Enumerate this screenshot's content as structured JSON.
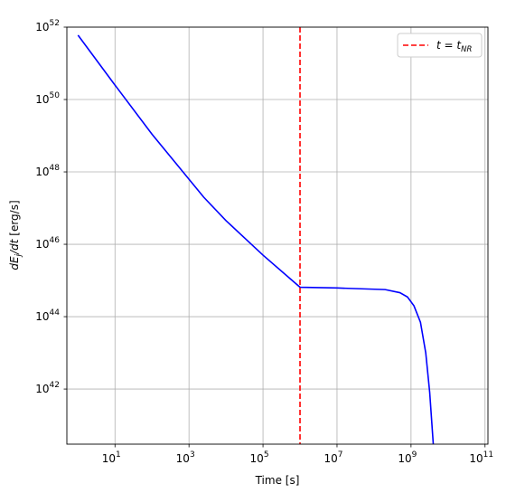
{
  "chart_data": {
    "type": "line",
    "xscale": "log",
    "yscale": "log",
    "xlim": [
      0.5,
      120000000000
    ],
    "ylim": [
      3e+40,
      1e+52
    ],
    "xlabel": "Time [s]",
    "ylabel": "dE_j/dt [erg/s]",
    "xticks": [
      {
        "value": 10,
        "base": "10",
        "exp": "1"
      },
      {
        "value": 1000,
        "base": "10",
        "exp": "3"
      },
      {
        "value": 100000,
        "base": "10",
        "exp": "5"
      },
      {
        "value": 10000000,
        "base": "10",
        "exp": "7"
      },
      {
        "value": 1000000000,
        "base": "10",
        "exp": "9"
      },
      {
        "value": 100000000000,
        "base": "10",
        "exp": "11"
      }
    ],
    "yticks": [
      {
        "value": 1e+42,
        "base": "10",
        "exp": "42"
      },
      {
        "value": 1e+44,
        "base": "10",
        "exp": "44"
      },
      {
        "value": 1e+46,
        "base": "10",
        "exp": "46"
      },
      {
        "value": 1e+48,
        "base": "10",
        "exp": "48"
      },
      {
        "value": 1e+50,
        "base": "10",
        "exp": "50"
      },
      {
        "value": 1e+52,
        "base": "10",
        "exp": "52"
      }
    ],
    "grid": true,
    "legend_placement": "top-right",
    "series": [
      {
        "color": "#0000ff",
        "style": "solid",
        "points": [
          [
            1,
            6e+51
          ],
          [
            10,
            2.5e+50
          ],
          [
            100,
            1.1e+49
          ],
          [
            2500,
            2e+47
          ],
          [
            10000,
            4.5e+46
          ],
          [
            100000,
            5e+45
          ],
          [
            1000000,
            6.5e+44
          ],
          [
            10000000,
            6.2e+44
          ],
          [
            200000000,
            5.6e+44
          ],
          [
            500000000,
            4.6e+44
          ],
          [
            800000000,
            3.5e+44
          ],
          [
            1200000000,
            2e+44
          ],
          [
            1800000000,
            7e+43
          ],
          [
            2500000000,
            1e+43
          ],
          [
            3200000000,
            8e+41
          ],
          [
            4000000000,
            3e+40
          ]
        ]
      },
      {
        "name": "t = t_NR",
        "color": "#ff0000",
        "style": "dashed",
        "vline_x": 1000000
      }
    ],
    "legend": {
      "entries": [
        {
          "label_main": "t = t",
          "label_sub": "NR",
          "color": "#ff0000",
          "style": "dashed"
        }
      ]
    }
  }
}
